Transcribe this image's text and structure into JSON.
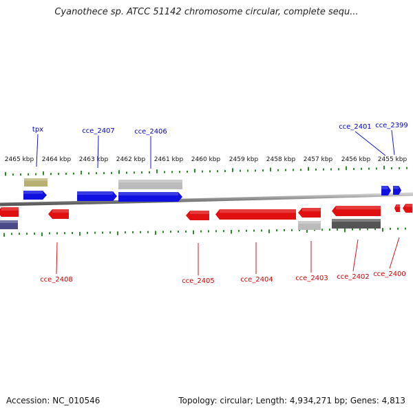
{
  "title": "Cyanothece sp. ATCC 51142 chromosome circular, complete sequ...",
  "scale_labels": [
    "2465 kbp",
    "2464 kbp",
    "2463 kbp",
    "2462 kbp",
    "2461 kbp",
    "2460 kbp",
    "2459 kbp",
    "2458 kbp",
    "2457 kbp",
    "2456 kbp",
    "2455 kbp"
  ],
  "genes_top": [
    {
      "name": "tpx"
    },
    {
      "name": "cce_2407"
    },
    {
      "name": "cce_2406"
    },
    {
      "name": "cce_2401"
    },
    {
      "name": "cce_2399"
    }
  ],
  "genes_bottom": [
    {
      "name": "cce_2408"
    },
    {
      "name": "cce_2405"
    },
    {
      "name": "cce_2404"
    },
    {
      "name": "cce_2403"
    },
    {
      "name": "cce_2402"
    },
    {
      "name": "cce_2400"
    }
  ],
  "colors": {
    "forward_gene": "#1010e0",
    "reverse_gene": "#e01010",
    "backbone": "#888888",
    "tick": "#2a8a2a",
    "rna_feature": "#b8b070",
    "gray_feature": "#bbbbbb",
    "dark_feature": "#555555",
    "purple_feature": "#4a4a8a"
  },
  "footer": {
    "accession": "Accession: NC_010546",
    "summary": "Topology: circular; Length: 4,934,271 bp; Genes: 4,813"
  }
}
